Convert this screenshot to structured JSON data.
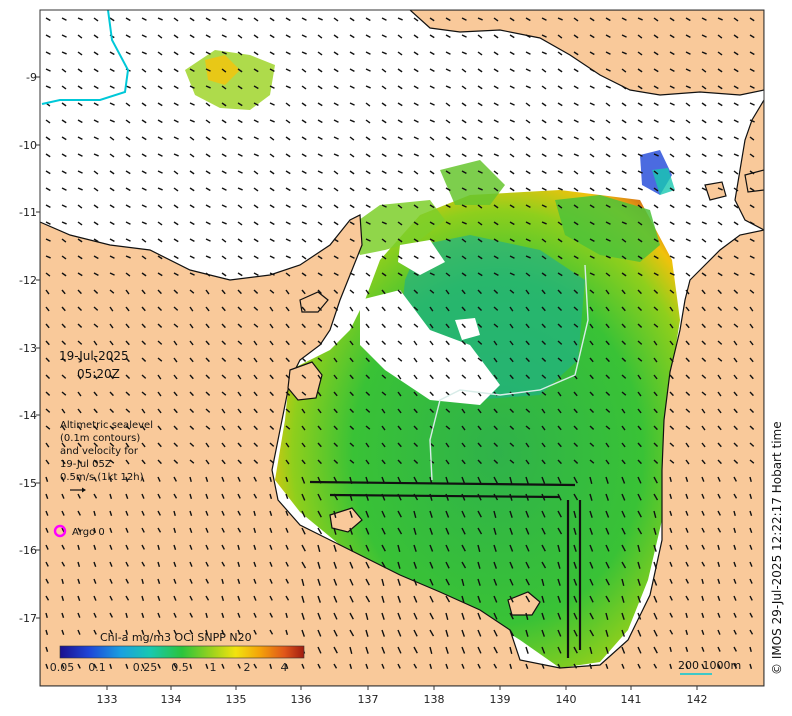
{
  "map": {
    "date_label": "19-Jul-2025",
    "time_label": "05:20Z",
    "legend_lines": [
      "Altimetric sealevel",
      "(0.1m contours)",
      "and velocity for",
      "19-Jul 05Z",
      "0.5m/s (1kt 12h)"
    ],
    "argo_label": "Argo 0",
    "colorbar_title": "Chl-a mg/m3 OCi SNPP N20",
    "colorbar_ticks": [
      "0.05",
      "0.1",
      "0.25",
      "0.5",
      "1",
      "2",
      "4"
    ],
    "scale_label": "200  1000m",
    "credit": "© IMOS 29-Jul-2025 12:22:17 Hobart time",
    "x_ticks": [
      "133",
      "134",
      "135",
      "136",
      "137",
      "138",
      "139",
      "140",
      "141",
      "142"
    ],
    "y_ticks": [
      "-9",
      "-10",
      "-11",
      "-12",
      "-13",
      "-14",
      "-15",
      "-16",
      "-17"
    ],
    "colors": {
      "land": "#f9c99a",
      "ocean_nodata": "#ffffff",
      "chl_low": "#1aa57a",
      "chl_mid": "#3cc43a",
      "chl_high": "#e6a800",
      "coast_max": "#c0521a",
      "contour": "#00c8d8",
      "argo": "#ff00ff"
    }
  }
}
